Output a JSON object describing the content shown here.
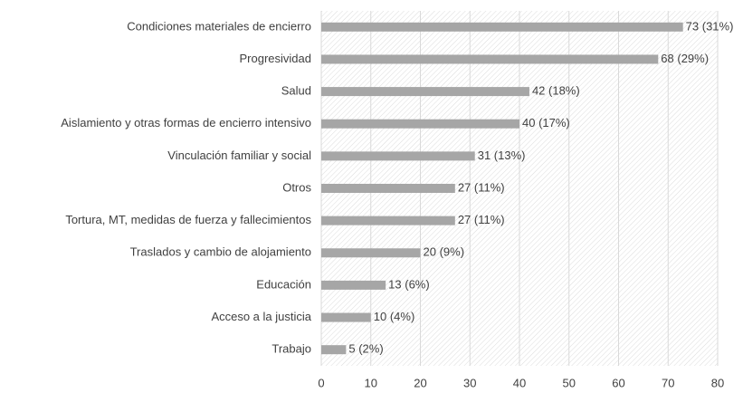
{
  "chart_data": {
    "type": "bar",
    "orientation": "horizontal",
    "categories": [
      "Condiciones materiales de encierro",
      "Progresividad",
      "Salud",
      "Aislamiento y otras formas de encierro intensivo",
      "Vinculación familiar y social",
      "Otros",
      "Tortura, MT, medidas de fuerza y fallecimientos",
      "Traslados y cambio de alojamiento",
      "Educación",
      "Acceso a la justicia",
      "Trabajo"
    ],
    "values": [
      73,
      68,
      42,
      40,
      31,
      27,
      27,
      20,
      13,
      10,
      5
    ],
    "value_labels": [
      "73 (31%)",
      "68 (29%)",
      "42 (18%)",
      "40 (17%)",
      "31 (13%)",
      "27 (11%)",
      "27 (11%)",
      "20 (9%)",
      "13 (6%)",
      "10 (4%)",
      "5 (2%)"
    ],
    "color": "#a6a6a6",
    "xlim": [
      0,
      80
    ],
    "xticks": [
      0,
      10,
      20,
      30,
      40,
      50,
      60,
      70,
      80
    ],
    "grid": true
  }
}
